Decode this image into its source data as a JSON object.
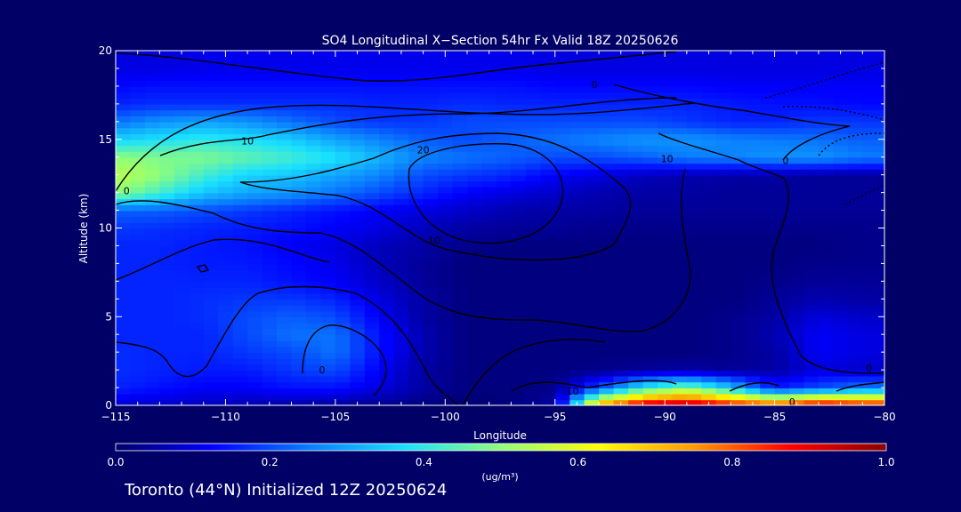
{
  "chart_data": {
    "type": "heatmap",
    "title": "SO4 Longitudinal X−Section 54hr  Fx Valid 18Z 20250626",
    "xlabel": "Longitude",
    "ylabel": "Altitude (km)",
    "xlim": [
      -115,
      -80
    ],
    "ylim": [
      0,
      20
    ],
    "x_ticks": [
      -115,
      -110,
      -105,
      -100,
      -95,
      -90,
      -85,
      -80
    ],
    "x_tick_labels": [
      "−115",
      "−110",
      "−105",
      "−100",
      "−95",
      "−90",
      "−85",
      "−80"
    ],
    "y_ticks": [
      0,
      5,
      10,
      15,
      20
    ],
    "y_tick_labels": [
      "0",
      "5",
      "10",
      "15",
      "20"
    ],
    "field": {
      "x": [
        -115,
        -113,
        -111,
        -109,
        -107,
        -105,
        -103,
        -101,
        -99,
        -97,
        -95,
        -93,
        -91,
        -89,
        -87,
        -85,
        -83,
        -81
      ],
      "y": [
        0,
        1,
        2,
        3,
        4,
        5,
        6,
        7,
        8,
        9,
        10,
        11,
        12,
        13,
        14,
        15,
        16,
        17,
        18,
        19
      ],
      "values": [
        [
          0.08,
          0.08,
          0.07,
          0.06,
          0.05,
          0.04,
          0.03,
          0.02,
          0.01,
          0.02,
          0.05,
          0.75,
          0.95,
          0.98,
          0.9,
          0.85,
          0.95,
          0.9
        ],
        [
          0.16,
          0.14,
          0.12,
          0.12,
          0.14,
          0.14,
          0.1,
          0.05,
          0.02,
          0.02,
          0.03,
          0.2,
          0.4,
          0.5,
          0.35,
          0.15,
          0.2,
          0.25
        ],
        [
          0.17,
          0.16,
          0.15,
          0.15,
          0.18,
          0.2,
          0.12,
          0.05,
          0.02,
          0.02,
          0.02,
          0.03,
          0.04,
          0.05,
          0.04,
          0.05,
          0.1,
          0.08
        ],
        [
          0.17,
          0.16,
          0.16,
          0.18,
          0.2,
          0.24,
          0.14,
          0.06,
          0.02,
          0.02,
          0.02,
          0.02,
          0.02,
          0.02,
          0.03,
          0.05,
          0.12,
          0.1
        ],
        [
          0.16,
          0.16,
          0.16,
          0.2,
          0.24,
          0.24,
          0.14,
          0.06,
          0.02,
          0.02,
          0.02,
          0.02,
          0.02,
          0.02,
          0.03,
          0.06,
          0.12,
          0.1
        ],
        [
          0.16,
          0.16,
          0.17,
          0.2,
          0.22,
          0.2,
          0.12,
          0.05,
          0.02,
          0.02,
          0.02,
          0.02,
          0.02,
          0.02,
          0.03,
          0.05,
          0.1,
          0.08
        ],
        [
          0.16,
          0.16,
          0.17,
          0.18,
          0.18,
          0.16,
          0.1,
          0.05,
          0.02,
          0.02,
          0.02,
          0.02,
          0.02,
          0.02,
          0.02,
          0.04,
          0.06,
          0.05
        ],
        [
          0.16,
          0.16,
          0.16,
          0.16,
          0.14,
          0.12,
          0.08,
          0.04,
          0.02,
          0.02,
          0.02,
          0.02,
          0.02,
          0.02,
          0.02,
          0.03,
          0.04,
          0.04
        ],
        [
          0.16,
          0.16,
          0.15,
          0.15,
          0.13,
          0.11,
          0.07,
          0.04,
          0.02,
          0.02,
          0.02,
          0.02,
          0.02,
          0.02,
          0.02,
          0.02,
          0.03,
          0.03
        ],
        [
          0.16,
          0.16,
          0.15,
          0.14,
          0.12,
          0.1,
          0.07,
          0.05,
          0.03,
          0.02,
          0.02,
          0.02,
          0.02,
          0.02,
          0.02,
          0.02,
          0.02,
          0.03
        ],
        [
          0.18,
          0.17,
          0.16,
          0.15,
          0.14,
          0.12,
          0.1,
          0.07,
          0.05,
          0.04,
          0.04,
          0.03,
          0.03,
          0.03,
          0.03,
          0.03,
          0.03,
          0.03
        ],
        [
          0.22,
          0.22,
          0.2,
          0.18,
          0.16,
          0.14,
          0.12,
          0.1,
          0.08,
          0.06,
          0.05,
          0.05,
          0.04,
          0.04,
          0.04,
          0.04,
          0.04,
          0.04
        ],
        [
          0.5,
          0.42,
          0.34,
          0.3,
          0.28,
          0.24,
          0.2,
          0.16,
          0.12,
          0.1,
          0.08,
          0.06,
          0.05,
          0.05,
          0.04,
          0.04,
          0.04,
          0.04
        ],
        [
          0.55,
          0.5,
          0.42,
          0.36,
          0.34,
          0.3,
          0.26,
          0.2,
          0.18,
          0.16,
          0.12,
          0.1,
          0.07,
          0.06,
          0.05,
          0.05,
          0.04,
          0.04
        ],
        [
          0.5,
          0.48,
          0.48,
          0.45,
          0.42,
          0.38,
          0.32,
          0.26,
          0.24,
          0.22,
          0.2,
          0.2,
          0.22,
          0.25,
          0.26,
          0.28,
          0.28,
          0.25
        ],
        [
          0.36,
          0.38,
          0.4,
          0.38,
          0.35,
          0.3,
          0.26,
          0.22,
          0.2,
          0.22,
          0.24,
          0.26,
          0.28,
          0.28,
          0.26,
          0.25,
          0.24,
          0.22
        ],
        [
          0.24,
          0.28,
          0.3,
          0.28,
          0.24,
          0.2,
          0.18,
          0.18,
          0.2,
          0.2,
          0.2,
          0.2,
          0.2,
          0.18,
          0.16,
          0.16,
          0.18,
          0.18
        ],
        [
          0.16,
          0.17,
          0.17,
          0.17,
          0.17,
          0.17,
          0.16,
          0.16,
          0.17,
          0.16,
          0.16,
          0.16,
          0.16,
          0.16,
          0.15,
          0.14,
          0.14,
          0.13
        ],
        [
          0.13,
          0.14,
          0.14,
          0.14,
          0.14,
          0.14,
          0.14,
          0.14,
          0.14,
          0.14,
          0.13,
          0.13,
          0.13,
          0.13,
          0.12,
          0.12,
          0.12,
          0.12
        ],
        [
          0.1,
          0.1,
          0.11,
          0.11,
          0.11,
          0.11,
          0.11,
          0.11,
          0.11,
          0.11,
          0.1,
          0.1,
          0.1,
          0.1,
          0.1,
          0.1,
          0.1,
          0.1
        ]
      ]
    },
    "colorbar": {
      "label": "(ug/m³)",
      "range": [
        0.0,
        1.0
      ],
      "tick_labels": [
        "0.0",
        "0.2",
        "0.4",
        "0.6",
        "0.8",
        "1.0"
      ],
      "colors": [
        "#010066",
        "#0000ff",
        "#0a7cff",
        "#19e0ff",
        "#90ff78",
        "#ffff00",
        "#ff9a00",
        "#ff0000",
        "#8a0000"
      ]
    },
    "contours": {
      "color": "#000000",
      "labels": [
        {
          "text": "10",
          "x": -109,
          "y": 14.9
        },
        {
          "text": "20",
          "x": -101,
          "y": 14.4
        },
        {
          "text": "10",
          "x": -89.9,
          "y": 13.9
        },
        {
          "text": "0",
          "x": -93.2,
          "y": 18.1
        },
        {
          "text": "0",
          "x": -84.5,
          "y": 13.8
        },
        {
          "text": "0",
          "x": -114.5,
          "y": 12.1
        },
        {
          "text": "10",
          "x": -100.5,
          "y": 9.3
        },
        {
          "text": "10",
          "x": -94.2,
          "y": 0.8
        },
        {
          "text": "0",
          "x": -105.6,
          "y": 2.0
        },
        {
          "text": "0",
          "x": -84.2,
          "y": 0.2
        },
        {
          "text": "0",
          "x": -80.7,
          "y": 2.1
        }
      ]
    }
  },
  "footer": "Toronto (44°N) Initialized 12Z 20250624"
}
